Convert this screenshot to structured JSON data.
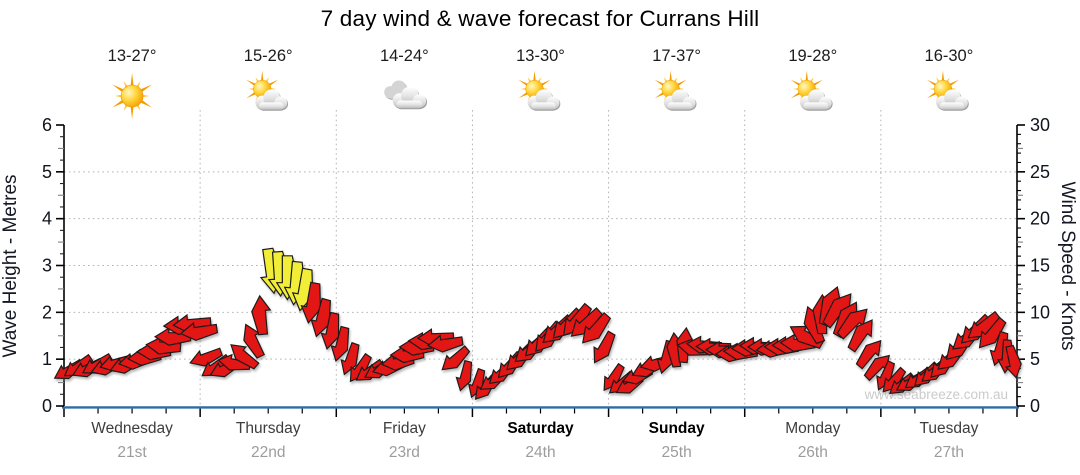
{
  "title": "7 day wind & wave forecast for Currans Hill",
  "watermark": "www.seabreeze.com.au",
  "axes": {
    "left_label": "Wave Height - Metres",
    "right_label": "Wind Speed - Knots",
    "left_ticks": [
      0,
      1,
      2,
      3,
      4,
      5,
      6
    ],
    "right_ticks": [
      0,
      5,
      10,
      15,
      20,
      25,
      30
    ]
  },
  "days": [
    {
      "name": "Wednesday",
      "date": "21st",
      "temp": "13-27°",
      "icon": "sunny",
      "bold": false
    },
    {
      "name": "Thursday",
      "date": "22nd",
      "temp": "15-26°",
      "icon": "partly-cloudy",
      "bold": false
    },
    {
      "name": "Friday",
      "date": "23rd",
      "temp": "14-24°",
      "icon": "cloudy",
      "bold": false
    },
    {
      "name": "Saturday",
      "date": "24th",
      "temp": "13-30°",
      "icon": "partly-cloudy",
      "bold": true
    },
    {
      "name": "Sunday",
      "date": "25th",
      "temp": "17-37°",
      "icon": "partly-cloudy",
      "bold": true
    },
    {
      "name": "Monday",
      "date": "26th",
      "temp": "19-28°",
      "icon": "partly-cloudy",
      "bold": false
    },
    {
      "name": "Tuesday",
      "date": "27th",
      "temp": "16-30°",
      "icon": "partly-cloudy",
      "bold": false
    }
  ],
  "colors": {
    "arrow_red": "#e31317",
    "arrow_yellow": "#f2ee38",
    "arrow_outline": "#1a1a1a",
    "baseline_blue": "#2e6ba8",
    "grid": "#b4b4b4",
    "axis": "#000000",
    "axis_text": "#10141e",
    "day_label": "#3d3d3d",
    "weekend_label": "#000000",
    "date_label": "#9c9c9c",
    "temp_label": "#1b1b1b",
    "watermark": "#cbcbcb"
  },
  "chart_data": {
    "type": "scatter",
    "subtype": "wind-vector-timeseries",
    "title": "7 day wind & wave forecast for Currans Hill",
    "x_categories": [
      "Wednesday 21st",
      "Thursday 22nd",
      "Friday 23rd",
      "Saturday 24th",
      "Sunday 25th",
      "Monday 26th",
      "Tuesday 27th"
    ],
    "y_left": {
      "label": "Wave Height - Metres",
      "range": [
        0,
        6
      ],
      "gridlines": [
        1,
        2,
        3,
        4,
        5
      ]
    },
    "y_right": {
      "label": "Wind Speed - Knots",
      "range": [
        0,
        30
      ],
      "gridlines": [
        5,
        10,
        15,
        20,
        25
      ]
    },
    "grid": "dotted",
    "legend": "none",
    "arrow_encoding": "[day_index, fraction_of_day, wind_speed_knots, direction_deg_arrow_points, color r=red y=yellow]",
    "arrows": [
      [
        0,
        0.03,
        3.8,
        240,
        "r"
      ],
      [
        0,
        0.1,
        4.2,
        235,
        "r"
      ],
      [
        0,
        0.17,
        4.0,
        245,
        "r"
      ],
      [
        0,
        0.24,
        4.4,
        240,
        "r"
      ],
      [
        0,
        0.31,
        4.2,
        250,
        "r"
      ],
      [
        0,
        0.38,
        4.6,
        255,
        "r"
      ],
      [
        0,
        0.45,
        4.4,
        250,
        "r"
      ],
      [
        0,
        0.52,
        4.8,
        260,
        "r"
      ],
      [
        0,
        0.59,
        5.2,
        265,
        "r"
      ],
      [
        0,
        0.66,
        5.8,
        270,
        "r"
      ],
      [
        0,
        0.73,
        6.4,
        275,
        "r"
      ],
      [
        0,
        0.8,
        7.4,
        270,
        "r"
      ],
      [
        0,
        0.87,
        8.6,
        268,
        "r"
      ],
      [
        0,
        0.94,
        8.8,
        265,
        "r"
      ],
      [
        0,
        0.99,
        8.0,
        262,
        "r"
      ],
      [
        1,
        0.04,
        5.2,
        250,
        "r"
      ],
      [
        1,
        0.11,
        4.2,
        235,
        "r"
      ],
      [
        1,
        0.18,
        4.0,
        245,
        "r"
      ],
      [
        1,
        0.25,
        4.6,
        280,
        "r"
      ],
      [
        1,
        0.32,
        5.4,
        310,
        "r"
      ],
      [
        1,
        0.39,
        7.0,
        335,
        "r"
      ],
      [
        1,
        0.45,
        9.7,
        355,
        "r"
      ],
      [
        1,
        0.52,
        14.4,
        172,
        "y"
      ],
      [
        1,
        0.58,
        14.1,
        176,
        "y"
      ],
      [
        1,
        0.64,
        13.7,
        180,
        "y"
      ],
      [
        1,
        0.7,
        13.1,
        185,
        "y"
      ],
      [
        1,
        0.76,
        12.4,
        190,
        "y"
      ],
      [
        1,
        0.82,
        11.0,
        190,
        "r"
      ],
      [
        1,
        0.89,
        9.4,
        195,
        "r"
      ],
      [
        1,
        0.96,
        8.0,
        192,
        "r"
      ],
      [
        2,
        0.03,
        6.6,
        195,
        "r"
      ],
      [
        2,
        0.1,
        5.0,
        200,
        "r"
      ],
      [
        2,
        0.17,
        4.0,
        215,
        "r"
      ],
      [
        2,
        0.24,
        3.7,
        235,
        "r"
      ],
      [
        2,
        0.31,
        3.9,
        240,
        "r"
      ],
      [
        2,
        0.38,
        4.1,
        255,
        "r"
      ],
      [
        2,
        0.45,
        4.7,
        262,
        "r"
      ],
      [
        2,
        0.52,
        5.5,
        268,
        "r"
      ],
      [
        2,
        0.59,
        6.3,
        270,
        "r"
      ],
      [
        2,
        0.66,
        6.9,
        272,
        "r"
      ],
      [
        2,
        0.73,
        7.3,
        268,
        "r"
      ],
      [
        2,
        0.8,
        6.7,
        262,
        "r"
      ],
      [
        2,
        0.87,
        5.0,
        230,
        "r"
      ],
      [
        2,
        0.94,
        3.2,
        195,
        "r"
      ],
      [
        3,
        0.03,
        2.4,
        200,
        "r"
      ],
      [
        3,
        0.09,
        1.9,
        220,
        "r"
      ],
      [
        3,
        0.15,
        2.7,
        235,
        "r"
      ],
      [
        3,
        0.21,
        3.5,
        228,
        "r"
      ],
      [
        3,
        0.27,
        4.3,
        222,
        "r"
      ],
      [
        3,
        0.34,
        5.1,
        226,
        "r"
      ],
      [
        3,
        0.41,
        5.9,
        230,
        "r"
      ],
      [
        3,
        0.48,
        6.7,
        224,
        "r"
      ],
      [
        3,
        0.55,
        7.3,
        220,
        "r"
      ],
      [
        3,
        0.62,
        8.1,
        228,
        "r"
      ],
      [
        3,
        0.69,
        8.7,
        224,
        "r"
      ],
      [
        3,
        0.76,
        9.1,
        220,
        "r"
      ],
      [
        3,
        0.83,
        8.8,
        228,
        "r"
      ],
      [
        3,
        0.9,
        8.2,
        222,
        "r"
      ],
      [
        3,
        0.96,
        6.2,
        210,
        "r"
      ],
      [
        4,
        0.03,
        3.0,
        215,
        "r"
      ],
      [
        4,
        0.09,
        2.4,
        230,
        "r"
      ],
      [
        4,
        0.15,
        2.2,
        240,
        "r"
      ],
      [
        4,
        0.21,
        3.2,
        250,
        "r"
      ],
      [
        4,
        0.28,
        4.0,
        245,
        "r"
      ],
      [
        4,
        0.35,
        4.6,
        255,
        "r"
      ],
      [
        4,
        0.42,
        5.2,
        195,
        "r"
      ],
      [
        4,
        0.49,
        6.0,
        355,
        "r"
      ],
      [
        4,
        0.56,
        6.5,
        5,
        "r"
      ],
      [
        4,
        0.63,
        6.2,
        280,
        "r"
      ],
      [
        4,
        0.7,
        6.5,
        275,
        "r"
      ],
      [
        4,
        0.77,
        6.3,
        272,
        "r"
      ],
      [
        4,
        0.84,
        6.0,
        270,
        "r"
      ],
      [
        4,
        0.91,
        5.6,
        268,
        "r"
      ],
      [
        4,
        0.97,
        5.8,
        272,
        "r"
      ],
      [
        5,
        0.03,
        6.2,
        268,
        "r"
      ],
      [
        5,
        0.09,
        6.4,
        272,
        "r"
      ],
      [
        5,
        0.15,
        6.3,
        270,
        "r"
      ],
      [
        5,
        0.21,
        6.1,
        266,
        "r"
      ],
      [
        5,
        0.27,
        6.3,
        271,
        "r"
      ],
      [
        5,
        0.33,
        6.5,
        269,
        "r"
      ],
      [
        5,
        0.39,
        6.7,
        272,
        "r"
      ],
      [
        5,
        0.45,
        7.5,
        300,
        "r"
      ],
      [
        5,
        0.51,
        8.7,
        340,
        "r"
      ],
      [
        5,
        0.57,
        9.8,
        0,
        "r"
      ],
      [
        5,
        0.63,
        10.7,
        20,
        "r"
      ],
      [
        5,
        0.69,
        10.3,
        38,
        "r"
      ],
      [
        5,
        0.75,
        9.3,
        30,
        "r"
      ],
      [
        5,
        0.8,
        8.9,
        45,
        "r"
      ],
      [
        5,
        0.86,
        7.6,
        35,
        "r"
      ],
      [
        5,
        0.92,
        5.6,
        40,
        "r"
      ],
      [
        5,
        0.98,
        4.2,
        45,
        "r"
      ],
      [
        6,
        0.03,
        3.2,
        205,
        "r"
      ],
      [
        6,
        0.09,
        2.7,
        222,
        "r"
      ],
      [
        6,
        0.15,
        2.3,
        232,
        "r"
      ],
      [
        6,
        0.21,
        2.5,
        240,
        "r"
      ],
      [
        6,
        0.27,
        2.9,
        234,
        "r"
      ],
      [
        6,
        0.33,
        3.3,
        226,
        "r"
      ],
      [
        6,
        0.39,
        3.7,
        230,
        "r"
      ],
      [
        6,
        0.45,
        4.3,
        224,
        "r"
      ],
      [
        6,
        0.51,
        5.1,
        228,
        "r"
      ],
      [
        6,
        0.57,
        6.3,
        224,
        "r"
      ],
      [
        6,
        0.63,
        7.3,
        230,
        "r"
      ],
      [
        6,
        0.69,
        8.1,
        226,
        "r"
      ],
      [
        6,
        0.75,
        8.5,
        232,
        "r"
      ],
      [
        6,
        0.81,
        7.7,
        220,
        "r"
      ],
      [
        6,
        0.87,
        6.1,
        196,
        "r"
      ],
      [
        6,
        0.92,
        5.3,
        184,
        "r"
      ],
      [
        6,
        0.97,
        4.7,
        168,
        "r"
      ]
    ]
  }
}
